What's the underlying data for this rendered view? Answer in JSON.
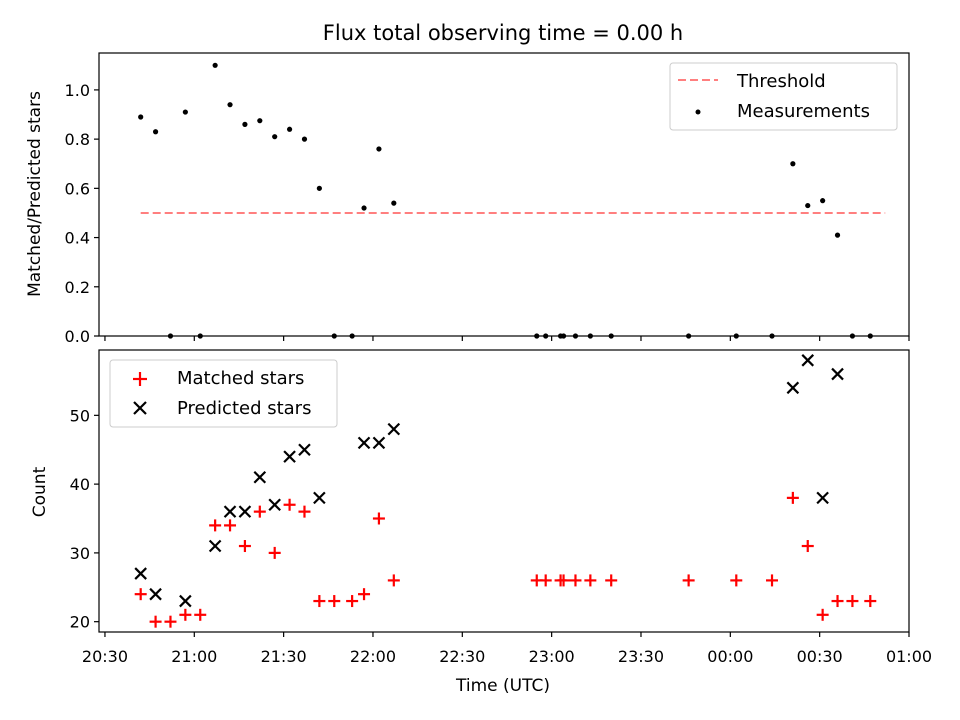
{
  "chart_data": [
    {
      "type": "scatter",
      "title": "Flux total observing time = 0.00 h",
      "xlabel": "",
      "ylabel": "Matched/Predicted stars",
      "xlim": [
        "20:28",
        "01:00"
      ],
      "ylim": [
        0,
        1.15
      ],
      "yticks": [
        0.0,
        0.2,
        0.4,
        0.6,
        0.8,
        1.0
      ],
      "ytick_labels": [
        "0.0",
        "0.2",
        "0.4",
        "0.6",
        "0.8",
        "1.0"
      ],
      "grid": false,
      "legend_position": "top-right",
      "threshold": {
        "name": "Threshold",
        "value": 0.5,
        "x_range": [
          "20:42",
          "00:52"
        ],
        "color": "#ff7f7f",
        "style": "dashed"
      },
      "series": [
        {
          "name": "Measurements",
          "color": "#000000",
          "marker": "dot",
          "points": [
            [
              "20:42",
              0.89
            ],
            [
              "20:47",
              0.83
            ],
            [
              "20:52",
              0.0
            ],
            [
              "20:57",
              0.91
            ],
            [
              "21:02",
              0.0
            ],
            [
              "21:07",
              1.1
            ],
            [
              "21:12",
              0.94
            ],
            [
              "21:17",
              0.86
            ],
            [
              "21:22",
              0.875
            ],
            [
              "21:27",
              0.81
            ],
            [
              "21:32",
              0.84
            ],
            [
              "21:37",
              0.8
            ],
            [
              "21:42",
              0.6
            ],
            [
              "21:47",
              0.0
            ],
            [
              "21:53",
              0.0
            ],
            [
              "21:57",
              0.52
            ],
            [
              "22:02",
              0.76
            ],
            [
              "22:07",
              0.54
            ],
            [
              "22:55",
              0.0
            ],
            [
              "22:58",
              0.0
            ],
            [
              "23:03",
              0.0
            ],
            [
              "23:04",
              0.0
            ],
            [
              "23:08",
              0.0
            ],
            [
              "23:13",
              0.0
            ],
            [
              "23:20",
              0.0
            ],
            [
              "23:46",
              0.0
            ],
            [
              "00:02",
              0.0
            ],
            [
              "00:14",
              0.0
            ],
            [
              "00:21",
              0.7
            ],
            [
              "00:26",
              0.53
            ],
            [
              "00:31",
              0.55
            ],
            [
              "00:36",
              0.41
            ],
            [
              "00:41",
              0.0
            ],
            [
              "00:47",
              0.0
            ]
          ]
        }
      ]
    },
    {
      "type": "scatter",
      "title": "",
      "xlabel": "Time (UTC)",
      "ylabel": "Count",
      "xlim": [
        "20:28",
        "01:00"
      ],
      "ylim": [
        18.5,
        59.5
      ],
      "xticks": [
        "20:30",
        "21:00",
        "21:30",
        "22:00",
        "22:30",
        "23:00",
        "23:30",
        "00:00",
        "00:30",
        "01:00"
      ],
      "yticks": [
        20,
        30,
        40,
        50
      ],
      "ytick_labels": [
        "20",
        "30",
        "40",
        "50"
      ],
      "grid": false,
      "legend_position": "top-left",
      "series": [
        {
          "name": "Matched stars",
          "color": "#ff0000",
          "marker": "plus",
          "points": [
            [
              "20:42",
              24
            ],
            [
              "20:47",
              20
            ],
            [
              "20:52",
              20
            ],
            [
              "20:57",
              21
            ],
            [
              "21:02",
              21
            ],
            [
              "21:07",
              34
            ],
            [
              "21:12",
              34
            ],
            [
              "21:17",
              31
            ],
            [
              "21:22",
              36
            ],
            [
              "21:27",
              30
            ],
            [
              "21:32",
              37
            ],
            [
              "21:37",
              36
            ],
            [
              "21:42",
              23
            ],
            [
              "21:47",
              23
            ],
            [
              "21:53",
              23
            ],
            [
              "21:57",
              24
            ],
            [
              "22:02",
              35
            ],
            [
              "22:07",
              26
            ],
            [
              "22:55",
              26
            ],
            [
              "22:58",
              26
            ],
            [
              "23:03",
              26
            ],
            [
              "23:04",
              26
            ],
            [
              "23:08",
              26
            ],
            [
              "23:13",
              26
            ],
            [
              "23:20",
              26
            ],
            [
              "23:46",
              26
            ],
            [
              "00:02",
              26
            ],
            [
              "00:14",
              26
            ],
            [
              "00:21",
              38
            ],
            [
              "00:26",
              31
            ],
            [
              "00:31",
              21
            ],
            [
              "00:36",
              23
            ],
            [
              "00:41",
              23
            ],
            [
              "00:47",
              23
            ]
          ]
        },
        {
          "name": "Predicted stars",
          "color": "#000000",
          "marker": "x",
          "points": [
            [
              "20:42",
              27
            ],
            [
              "20:47",
              24
            ],
            [
              "20:57",
              23
            ],
            [
              "21:07",
              31
            ],
            [
              "21:12",
              36
            ],
            [
              "21:17",
              36
            ],
            [
              "21:22",
              41
            ],
            [
              "21:27",
              37
            ],
            [
              "21:32",
              44
            ],
            [
              "21:37",
              45
            ],
            [
              "21:42",
              38
            ],
            [
              "21:57",
              46
            ],
            [
              "22:02",
              46
            ],
            [
              "22:07",
              48
            ],
            [
              "00:21",
              54
            ],
            [
              "00:26",
              58
            ],
            [
              "00:31",
              38
            ],
            [
              "00:36",
              56
            ]
          ]
        }
      ]
    }
  ]
}
